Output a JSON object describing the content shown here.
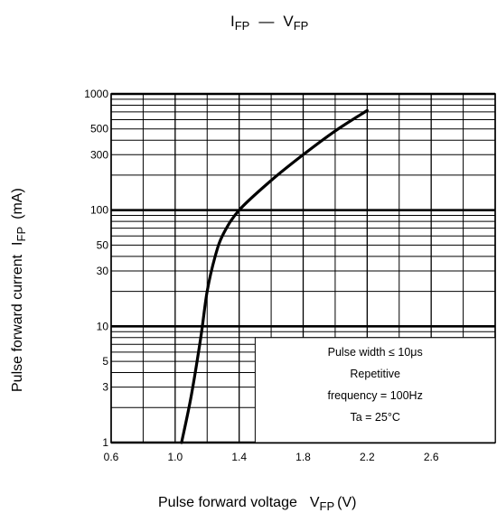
{
  "chart_data": {
    "type": "line",
    "title": {
      "main_a": "I",
      "sub_a": "FP",
      "dash": "—",
      "main_b": "V",
      "sub_b": "FP"
    },
    "xlabel": {
      "text": "Pulse forward voltage",
      "sym": "V",
      "sub": "FP",
      "unit": "(V)"
    },
    "ylabel": {
      "text": "Pulse forward current",
      "sym": "I",
      "sub": "FP",
      "unit": "(mA)"
    },
    "xscale": "linear",
    "yscale": "log",
    "xlim": [
      0.6,
      3.0
    ],
    "ylim": [
      1,
      1000
    ],
    "grid": true,
    "x_ticks": [
      {
        "v": 0.6,
        "label": "0.6"
      },
      {
        "v": 1.0,
        "label": "1.0"
      },
      {
        "v": 1.4,
        "label": "1.4"
      },
      {
        "v": 1.8,
        "label": "1.8"
      },
      {
        "v": 2.2,
        "label": "2.2"
      },
      {
        "v": 2.6,
        "label": "2.6"
      }
    ],
    "y_ticks": [
      {
        "v": 1,
        "label": "1"
      },
      {
        "v": 3,
        "label": "3"
      },
      {
        "v": 5,
        "label": "5"
      },
      {
        "v": 10,
        "label": "10"
      },
      {
        "v": 30,
        "label": "30"
      },
      {
        "v": 50,
        "label": "50"
      },
      {
        "v": 100,
        "label": "100"
      },
      {
        "v": 300,
        "label": "300"
      },
      {
        "v": 500,
        "label": "500"
      },
      {
        "v": 1000,
        "label": "1000"
      }
    ],
    "series": [
      {
        "x": [
          1.04,
          1.1,
          1.16,
          1.2,
          1.25,
          1.3,
          1.4,
          1.6,
          1.8,
          2.0,
          2.2
        ],
        "y": [
          1,
          2.5,
          8,
          20,
          40,
          62,
          100,
          180,
          300,
          480,
          720
        ]
      }
    ],
    "annotation": [
      "Pulse width ≤ 10μs",
      "Repetitive",
      "frequency = 100Hz",
      "Ta = 25°C"
    ]
  }
}
